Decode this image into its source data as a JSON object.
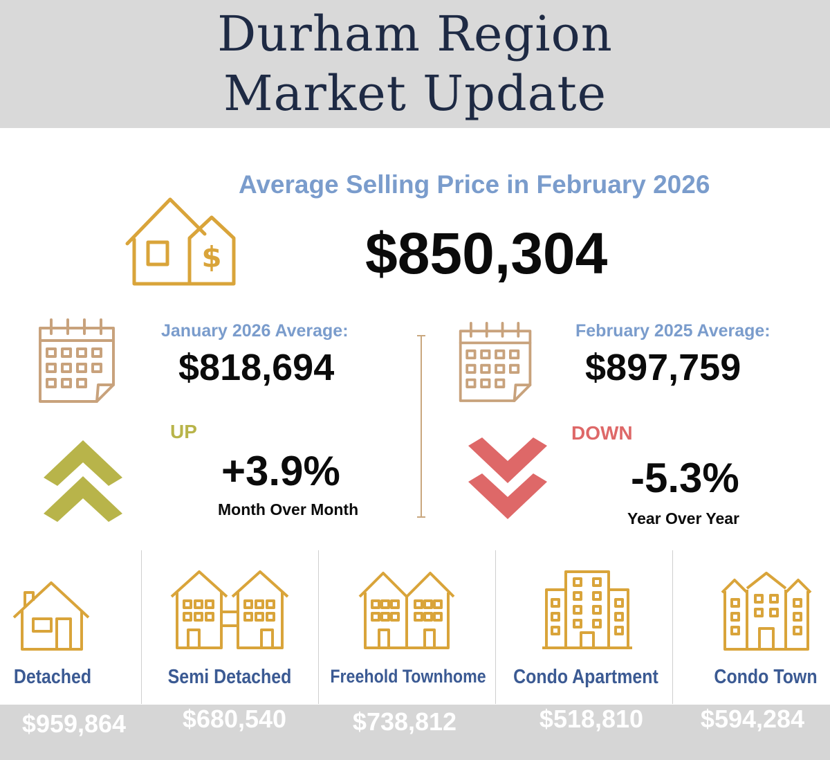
{
  "header": {
    "title_line1": "Durham Region",
    "title_line2": "Market Update"
  },
  "summary": {
    "subheading": "Average Selling Price in February 2026",
    "average_price": "$850,304"
  },
  "month_compare": {
    "label": "January  2026 Average:",
    "price": "$818,694",
    "direction": "UP",
    "change": "+3.9%",
    "caption": "Month Over Month"
  },
  "year_compare": {
    "label": "February 2025 Average:",
    "price": "$897,759",
    "direction": "DOWN",
    "change": "-5.3%",
    "caption": "Year Over Year"
  },
  "property_types": [
    {
      "label": "Detached",
      "price": "$959,864",
      "icon": "detached-house-icon"
    },
    {
      "label": "Semi Detached",
      "price": "$680,540",
      "icon": "semi-detached-icon"
    },
    {
      "label": "Freehold Townhome",
      "price": "$738,812",
      "icon": "freehold-townhome-icon"
    },
    {
      "label": "Condo Apartment",
      "price": "$518,810",
      "icon": "condo-apartment-icon"
    },
    {
      "label": "Condo Town",
      "price": "$594,284",
      "icon": "condo-town-icon"
    }
  ],
  "colors": {
    "title": "#1e2a44",
    "subheading": "#7a9ccc",
    "gold_icon": "#d9a43a",
    "calendar_icon": "#c8a27c",
    "up": "#b8b44a",
    "down": "#de6868",
    "type_label": "#3b5a93",
    "footer_band": "#d6d6d6"
  }
}
